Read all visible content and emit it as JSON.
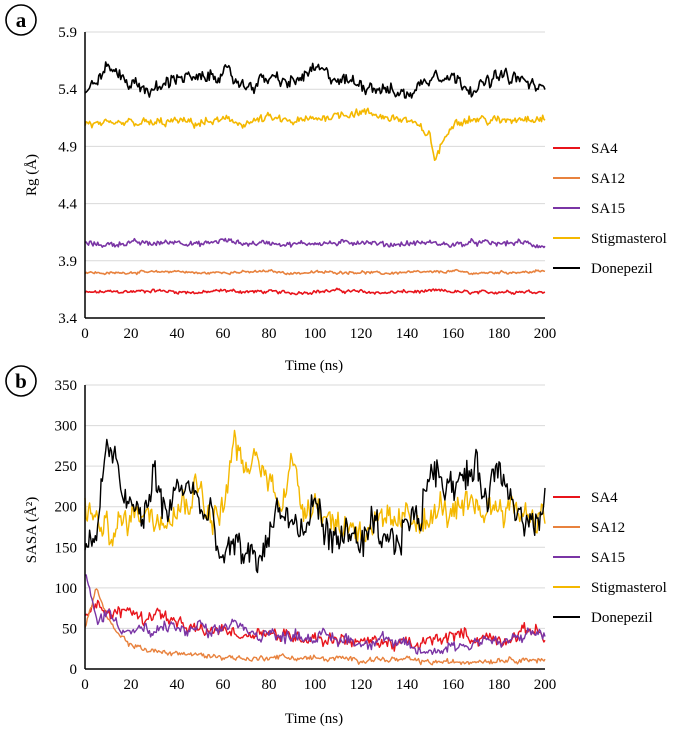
{
  "colors": {
    "SA4": "#e8141b",
    "SA12": "#e8823e",
    "SA15": "#7a35a5",
    "Stigmasterol": "#f4b800",
    "Donepezil": "#000000"
  },
  "chart_data": [
    {
      "panel": "a",
      "type": "line",
      "title": "",
      "xlabel": "Time (ns)",
      "ylabel": "Rg (Å)",
      "xlim": [
        0,
        200
      ],
      "ylim": [
        3.4,
        5.9
      ],
      "xticks": [
        "0",
        "20",
        "40",
        "60",
        "80",
        "100",
        "120",
        "140",
        "160",
        "180",
        "200"
      ],
      "yticks": [
        "5.9",
        "5.4",
        "4.9",
        "4.4",
        "3.9",
        "3.4"
      ],
      "legend": "right",
      "x": [
        0,
        10,
        20,
        30,
        40,
        50,
        60,
        70,
        80,
        90,
        100,
        110,
        120,
        130,
        140,
        150,
        152,
        160,
        170,
        180,
        190,
        200
      ],
      "series": [
        {
          "name": "SA4",
          "values": [
            3.62,
            3.63,
            3.63,
            3.64,
            3.63,
            3.62,
            3.64,
            3.63,
            3.63,
            3.62,
            3.63,
            3.64,
            3.63,
            3.62,
            3.63,
            3.63,
            3.64,
            3.63,
            3.62,
            3.63,
            3.63,
            3.63
          ]
        },
        {
          "name": "SA12",
          "values": [
            3.8,
            3.79,
            3.8,
            3.8,
            3.81,
            3.79,
            3.8,
            3.8,
            3.81,
            3.79,
            3.8,
            3.8,
            3.8,
            3.79,
            3.8,
            3.8,
            3.8,
            3.81,
            3.79,
            3.8,
            3.8,
            3.81
          ]
        },
        {
          "name": "SA15",
          "values": [
            4.05,
            4.04,
            4.06,
            4.05,
            4.07,
            4.04,
            4.08,
            4.05,
            4.06,
            4.04,
            4.06,
            4.05,
            4.07,
            4.04,
            4.05,
            4.06,
            4.05,
            4.04,
            4.06,
            4.05,
            4.06,
            4.02
          ]
        },
        {
          "name": "Stigmasterol",
          "values": [
            5.1,
            5.08,
            5.11,
            5.1,
            5.12,
            5.1,
            5.13,
            5.1,
            5.15,
            5.11,
            5.14,
            5.18,
            5.2,
            5.16,
            5.13,
            5.0,
            4.78,
            5.12,
            5.14,
            5.12,
            5.15,
            5.15
          ]
        },
        {
          "name": "Donepezil",
          "values": [
            5.35,
            5.6,
            5.45,
            5.38,
            5.52,
            5.48,
            5.55,
            5.42,
            5.5,
            5.45,
            5.58,
            5.48,
            5.45,
            5.4,
            5.35,
            5.5,
            5.55,
            5.5,
            5.4,
            5.52,
            5.48,
            5.38
          ]
        }
      ]
    },
    {
      "panel": "b",
      "type": "line",
      "title": "",
      "xlabel": "Time (ns)",
      "ylabel": "SASA (Å²)",
      "xlim": [
        0,
        200
      ],
      "ylim": [
        0,
        350
      ],
      "xticks": [
        "0",
        "20",
        "40",
        "60",
        "80",
        "100",
        "120",
        "140",
        "160",
        "180",
        "200"
      ],
      "yticks": [
        "350",
        "300",
        "250",
        "200",
        "150",
        "100",
        "50",
        "0"
      ],
      "legend": "right",
      "x": [
        0,
        5,
        10,
        15,
        20,
        25,
        30,
        35,
        40,
        45,
        50,
        55,
        60,
        65,
        70,
        75,
        80,
        85,
        90,
        95,
        100,
        105,
        110,
        115,
        120,
        125,
        130,
        135,
        140,
        145,
        150,
        155,
        160,
        165,
        170,
        175,
        180,
        185,
        190,
        195,
        200
      ],
      "series": [
        {
          "name": "SA4",
          "values": [
            70,
            85,
            65,
            70,
            75,
            60,
            70,
            65,
            55,
            50,
            48,
            45,
            50,
            45,
            40,
            48,
            45,
            40,
            42,
            38,
            40,
            35,
            38,
            35,
            32,
            35,
            33,
            30,
            32,
            28,
            35,
            38,
            40,
            45,
            35,
            40,
            35,
            38,
            45,
            50,
            40
          ]
        },
        {
          "name": "SA12",
          "values": [
            50,
            100,
            60,
            40,
            30,
            25,
            22,
            20,
            20,
            18,
            17,
            16,
            15,
            14,
            13,
            12,
            15,
            15,
            14,
            13,
            14,
            12,
            13,
            12,
            11,
            12,
            12,
            11,
            12,
            10,
            8,
            9,
            8,
            9,
            10,
            10,
            11,
            12,
            12,
            11,
            10
          ]
        },
        {
          "name": "SA15",
          "values": [
            120,
            60,
            70,
            55,
            45,
            50,
            40,
            55,
            50,
            45,
            55,
            40,
            50,
            60,
            45,
            40,
            50,
            35,
            45,
            40,
            38,
            42,
            35,
            38,
            30,
            35,
            40,
            28,
            30,
            22,
            20,
            25,
            30,
            28,
            35,
            38,
            30,
            35,
            40,
            45,
            42
          ]
        },
        {
          "name": "Stigmasterol",
          "values": [
            200,
            180,
            170,
            175,
            190,
            200,
            185,
            195,
            200,
            210,
            230,
            180,
            200,
            280,
            240,
            260,
            230,
            210,
            255,
            200,
            210,
            190,
            175,
            180,
            170,
            180,
            175,
            180,
            185,
            190,
            180,
            200,
            190,
            195,
            200,
            195,
            205,
            200,
            195,
            190,
            185
          ]
        },
        {
          "name": "Donepezil",
          "values": [
            150,
            170,
            280,
            230,
            200,
            180,
            240,
            190,
            220,
            230,
            200,
            180,
            130,
            150,
            145,
            130,
            170,
            200,
            180,
            160,
            210,
            170,
            150,
            180,
            140,
            175,
            150,
            155,
            185,
            180,
            250,
            240,
            230,
            235,
            245,
            215,
            250,
            225,
            180,
            175,
            190
          ]
        }
      ]
    }
  ]
}
